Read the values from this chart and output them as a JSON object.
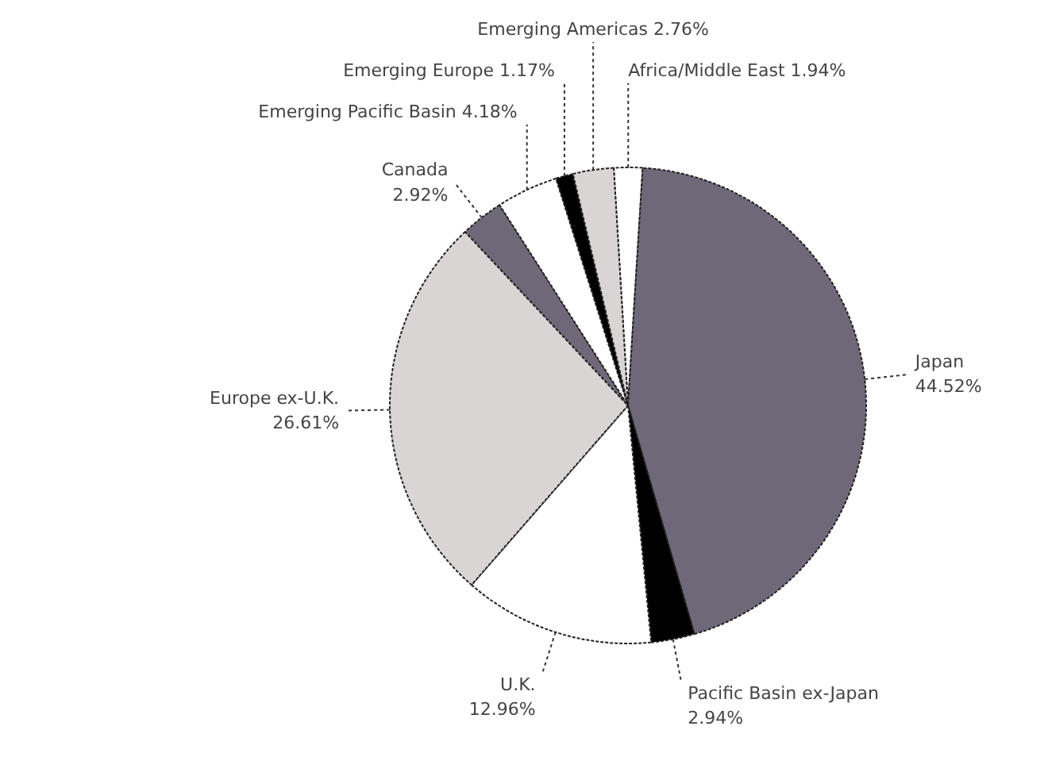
{
  "chart_data": {
    "type": "pie",
    "categories": [
      "Africa/Middle East",
      "Japan",
      "Pacific Basin ex-Japan",
      "U.K.",
      "Europe ex-U.K.",
      "Canada",
      "Emerging Pacific Basin",
      "Emerging Europe",
      "Emerging Americas"
    ],
    "values": [
      1.94,
      44.52,
      2.94,
      12.96,
      26.61,
      2.92,
      4.18,
      1.17,
      2.76
    ],
    "colors": [
      "#ffffff",
      "#6e6878",
      "#000000",
      "#ffffff",
      "#d9d5d5",
      "#6e6878",
      "#ffffff",
      "#000000",
      "#d9d5d5"
    ],
    "value_labels": [
      "1.94%",
      "44.52%",
      "2.94%",
      "12.96%",
      "26.61%",
      "2.92%",
      "4.18%",
      "1.17%",
      "2.76%"
    ]
  }
}
